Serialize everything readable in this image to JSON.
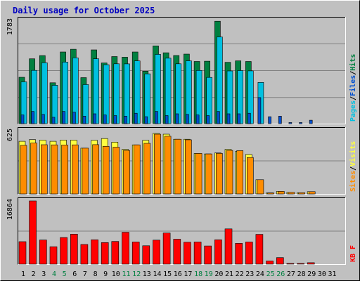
{
  "chart_data": {
    "type": "bar",
    "title": "Daily usage for October 2025",
    "days": [
      "1",
      "2",
      "3",
      "4",
      "5",
      "6",
      "7",
      "8",
      "9",
      "10",
      "11",
      "12",
      "13",
      "14",
      "15",
      "16",
      "17",
      "18",
      "19",
      "20",
      "21",
      "22",
      "23",
      "24",
      "25",
      "26",
      "27",
      "28",
      "29",
      "30",
      "31"
    ],
    "weekend_days": [
      4,
      5,
      11,
      12,
      18,
      19,
      25,
      26
    ],
    "colors": {
      "background": "#c0c0c0",
      "title": "#0000c0",
      "day_label": "#000000",
      "weekend_label": "#008040",
      "hits": "#008040",
      "files": "#00c0e0",
      "pages": "#004fd0",
      "visits": "#ffff40",
      "sites": "#ff8c00",
      "kb": "#ff0000",
      "grid": "#808080"
    },
    "panels": [
      {
        "id": "requests",
        "max_label": "1783",
        "ylim": [
          0,
          1783
        ],
        "legend": [
          {
            "label": "Pages",
            "color": "#00c0e0"
          },
          {
            "label": "/",
            "color": "#000000"
          },
          {
            "label": "Files",
            "color": "#004fd0"
          },
          {
            "label": "/",
            "color": "#000000"
          },
          {
            "label": "Hits",
            "color": "#008040"
          }
        ],
        "series": [
          {
            "name": "Hits",
            "color": "#008040",
            "values": [
              800,
              1120,
              1175,
              706,
              1237,
              1285,
              794,
              1273,
              1048,
              1158,
              1147,
              1237,
              906,
              1343,
              1224,
              1176,
              1201,
              1073,
              1078,
              1768,
              1059,
              1084,
              1073,
              0,
              0,
              0,
              0,
              0,
              0,
              0,
              0
            ]
          },
          {
            "name": "Files",
            "color": "#00c0e0",
            "values": [
              722,
              920,
              1052,
              662,
              1062,
              1137,
              674,
              1120,
              1018,
              1033,
              1032,
              1083,
              860,
              1196,
              1130,
              1033,
              1084,
              918,
              798,
              1497,
              910,
              916,
              911,
              712,
              0,
              0,
              0,
              0,
              0,
              0,
              0
            ]
          },
          {
            "name": "Pages",
            "color": "#004fd0",
            "values": [
              150,
              210,
              160,
              110,
              210,
              200,
              130,
              170,
              150,
              140,
              130,
              180,
              120,
              210,
              140,
              170,
              160,
              150,
              140,
              210,
              170,
              170,
              180,
              450,
              120,
              130,
              20,
              20,
              60,
              0,
              0
            ]
          }
        ]
      },
      {
        "id": "visitors",
        "max_label": "625",
        "ylim": [
          0,
          625
        ],
        "legend": [
          {
            "label": "Sites",
            "color": "#ff8c00"
          },
          {
            "label": "/",
            "color": "#000000"
          },
          {
            "label": "Visits",
            "color": "#ffff40"
          }
        ],
        "series": [
          {
            "name": "Visits",
            "color": "#ffff40",
            "values": [
              520,
              537,
              532,
              520,
              532,
              532,
              452,
              530,
              547,
              512,
              440,
              485,
              530,
              598,
              590,
              540,
              540,
              400,
              395,
              405,
              440,
              420,
              390,
              140,
              10,
              25,
              15,
              12,
              22,
              0,
              0
            ]
          },
          {
            "name": "Sites",
            "color": "#ff8c00",
            "values": [
              480,
              503,
              486,
              485,
              483,
              485,
              452,
              487,
              470,
              462,
              430,
              485,
              500,
              590,
              570,
              540,
              535,
              400,
              395,
              400,
              430,
              428,
              360,
              140,
              10,
              25,
              15,
              12,
              22,
              0,
              0
            ]
          }
        ]
      },
      {
        "id": "kbytes",
        "max_label": "16864",
        "ylim": [
          0,
          16864
        ],
        "legend": [
          {
            "label": "KB F",
            "color": "#ff0000"
          }
        ],
        "series": [
          {
            "name": "KB F",
            "color": "#ff0000",
            "values": [
              6000,
              16864,
              6450,
              4650,
              7100,
              8000,
              5250,
              6500,
              5750,
              6050,
              8500,
              5900,
              4900,
              6400,
              8300,
              6650,
              5850,
              5900,
              4850,
              6500,
              9400,
              5550,
              5900,
              7950,
              850,
              1750,
              180,
              180,
              400,
              0,
              0
            ]
          }
        ]
      }
    ]
  }
}
